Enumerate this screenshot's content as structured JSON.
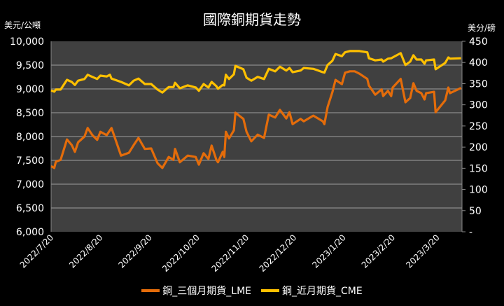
{
  "chart_data": {
    "type": "line",
    "title": "國際銅期貨走勢",
    "ylabel_left": "美元/公噸",
    "ylabel_right": "美分/磅",
    "ylim_left": [
      6000,
      10000
    ],
    "ylim_right": [
      0,
      450
    ],
    "yticks_left": [
      "6,000",
      "6,500",
      "7,000",
      "7,500",
      "8,000",
      "8,500",
      "9,000",
      "9,500",
      "10,000"
    ],
    "yticks_right": [
      "-",
      "50",
      "100",
      "150",
      "200",
      "250",
      "300",
      "350",
      "400",
      "450"
    ],
    "xticks": [
      "2022/7/20",
      "2022/8/20",
      "2022/9/20",
      "2022/10/20",
      "2022/11/20",
      "2022/12/20",
      "2023/1/20",
      "2023/2/20",
      "2023/3/20"
    ],
    "xlim": [
      "2022-07-20",
      "2023-04-04"
    ],
    "grid": true,
    "legend": "bottom",
    "background": "#404040",
    "x": [
      "2022-07-20",
      "2022-07-22",
      "2022-07-23",
      "2022-07-26",
      "2022-07-30",
      "2022-08-02",
      "2022-08-04",
      "2022-08-06",
      "2022-08-10",
      "2022-08-12",
      "2022-08-15",
      "2022-08-18",
      "2022-08-20",
      "2022-08-24",
      "2022-08-26",
      "2022-08-27",
      "2022-09-02",
      "2022-09-07",
      "2022-09-10",
      "2022-09-13",
      "2022-09-17",
      "2022-09-21",
      "2022-09-25",
      "2022-09-28",
      "2022-10-02",
      "2022-10-05",
      "2022-10-06",
      "2022-10-09",
      "2022-10-14",
      "2022-10-19",
      "2022-10-21",
      "2022-10-24",
      "2022-10-27",
      "2022-10-29",
      "2022-11-01",
      "2022-11-02",
      "2022-11-05",
      "2022-11-06",
      "2022-11-07",
      "2022-11-09",
      "2022-11-12",
      "2022-11-13",
      "2022-11-18",
      "2022-11-20",
      "2022-11-23",
      "2022-11-27",
      "2022-12-01",
      "2022-12-04",
      "2022-12-08",
      "2022-12-11",
      "2022-12-15",
      "2022-12-17",
      "2022-12-19",
      "2022-12-24",
      "2022-12-26",
      "2023-01-01",
      "2023-01-07",
      "2023-01-08",
      "2023-01-10",
      "2023-01-13",
      "2023-01-15",
      "2023-01-19",
      "2023-01-21",
      "2023-01-24",
      "2023-01-27",
      "2023-01-30",
      "2023-02-04",
      "2023-02-05",
      "2023-02-09",
      "2023-02-13",
      "2023-02-14",
      "2023-02-17",
      "2023-02-19",
      "2023-02-20",
      "2023-02-25",
      "2023-02-28",
      "2023-03-03",
      "2023-03-05",
      "2023-03-07",
      "2023-03-10",
      "2023-03-12",
      "2023-03-13",
      "2023-03-18",
      "2023-03-19",
      "2023-03-25",
      "2023-03-27",
      "2023-03-28",
      "2023-04-04"
    ],
    "series": [
      {
        "name": "銅_三個月期貨_LME",
        "axis": "left",
        "color": "#E46C0A",
        "values": [
          7380,
          7340,
          7470,
          7510,
          7940,
          7820,
          7680,
          7880,
          8000,
          8180,
          8030,
          7930,
          8100,
          8030,
          8130,
          8180,
          7600,
          7660,
          7820,
          7970,
          7740,
          7750,
          7440,
          7340,
          7570,
          7510,
          7740,
          7460,
          7600,
          7570,
          7410,
          7650,
          7530,
          7810,
          7510,
          7460,
          7680,
          7570,
          8100,
          7960,
          8130,
          8500,
          8370,
          8100,
          7900,
          8040,
          7970,
          8460,
          8400,
          8560,
          8380,
          8510,
          8260,
          8370,
          8320,
          8440,
          8320,
          8260,
          8620,
          8930,
          9190,
          9100,
          9340,
          9370,
          9370,
          9320,
          9210,
          9070,
          8880,
          8990,
          8850,
          8960,
          8850,
          9030,
          9210,
          8720,
          8810,
          9120,
          8960,
          8910,
          8780,
          8910,
          8940,
          8510,
          8760,
          9030,
          8910,
          9020
        ]
      },
      {
        "name": "銅_近月期貨_CME",
        "axis": "right",
        "color": "#FFC000",
        "values": [
          334,
          331,
          336,
          336,
          359,
          354,
          347,
          357,
          361,
          371,
          366,
          361,
          369,
          367,
          371,
          362,
          354,
          346,
          357,
          362,
          349,
          349,
          336,
          329,
          342,
          342,
          352,
          339,
          346,
          341,
          333,
          349,
          341,
          354,
          344,
          338,
          347,
          346,
          371,
          361,
          372,
          392,
          384,
          364,
          357,
          366,
          361,
          385,
          379,
          390,
          381,
          387,
          377,
          381,
          387,
          385,
          377,
          376,
          394,
          404,
          420,
          415,
          424,
          427,
          427,
          427,
          424,
          410,
          405,
          407,
          402,
          409,
          410,
          412,
          422,
          394,
          402,
          417,
          407,
          407,
          397,
          405,
          407,
          384,
          399,
          412,
          409,
          410
        ]
      }
    ]
  }
}
